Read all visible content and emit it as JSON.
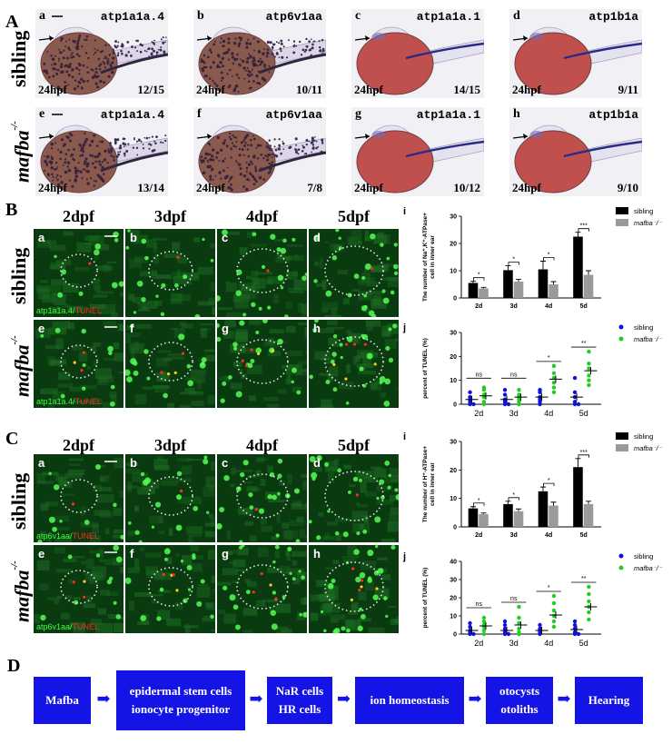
{
  "panels": {
    "A": "A",
    "B": "B",
    "C": "C",
    "D": "D"
  },
  "row_labels": {
    "sibling": "sibling",
    "mutant": "mafba"
  },
  "mutant_sup": "-/-",
  "section_a": {
    "embryos": [
      {
        "letter": "a",
        "gene": "atp1a1a.4",
        "stage": "24hpf",
        "ratio": "12/15",
        "stain": "dots"
      },
      {
        "letter": "b",
        "gene": "atp6v1aa",
        "stage": "24hpf",
        "ratio": "10/11",
        "stain": "dots"
      },
      {
        "letter": "c",
        "gene": "atp1a1a.1",
        "stage": "24hpf",
        "ratio": "14/15",
        "stain": "line"
      },
      {
        "letter": "d",
        "gene": "atp1b1a",
        "stage": "24hpf",
        "ratio": "9/11",
        "stain": "line"
      },
      {
        "letter": "e",
        "gene": "atp1a1a.4",
        "stage": "24hpf",
        "ratio": "13/14",
        "stain": "dots"
      },
      {
        "letter": "f",
        "gene": "atp6v1aa",
        "stage": "24hpf",
        "ratio": "7/8",
        "stain": "dots"
      },
      {
        "letter": "g",
        "gene": "atp1a1a.1",
        "stage": "24hpf",
        "ratio": "10/12",
        "stain": "line"
      },
      {
        "letter": "h",
        "gene": "atp1b1a",
        "stage": "24hpf",
        "ratio": "9/10",
        "stain": "line"
      }
    ]
  },
  "section_b": {
    "columns": [
      "2dpf",
      "3dpf",
      "4dpf",
      "5dpf"
    ],
    "letters": [
      "a",
      "b",
      "c",
      "d",
      "e",
      "f",
      "g",
      "h"
    ],
    "stain_green": "atp1a1a.4",
    "stain_sep": "/",
    "stain_red": "TUNEL"
  },
  "section_c": {
    "columns": [
      "2dpf",
      "3dpf",
      "4dpf",
      "5dpf"
    ],
    "letters": [
      "a",
      "b",
      "c",
      "d",
      "e",
      "f",
      "g",
      "h"
    ],
    "stain_green": "atp6v1aa",
    "stain_sep": "/",
    "stain_red": "TUNEL"
  },
  "chart_data": [
    {
      "id": "B-i",
      "letter": "i",
      "type": "bar",
      "ylabel": "The number of Na⁺,K⁺-ATPase+ cell in inner ear",
      "categories": [
        "2d",
        "3d",
        "4d",
        "5d"
      ],
      "ylim": [
        0,
        30
      ],
      "yticks": [
        0,
        10,
        20,
        30
      ],
      "series": [
        {
          "name": "sibling",
          "color": "#000000",
          "values": [
            5.5,
            10.2,
            10.5,
            22.5
          ],
          "errors": [
            0.6,
            1.6,
            3.0,
            1.6
          ]
        },
        {
          "name": "mafba⁻/⁻",
          "color": "#9a9a9a",
          "values": [
            3.5,
            6.0,
            5.0,
            8.5
          ],
          "errors": [
            0.4,
            0.8,
            1.0,
            1.5
          ]
        }
      ],
      "significance": [
        "*",
        "*",
        "*",
        "***"
      ]
    },
    {
      "id": "B-j",
      "letter": "j",
      "type": "scatter",
      "ylabel": "percent of TUNEL (%)",
      "categories": [
        "2d",
        "3d",
        "4d",
        "5d"
      ],
      "ylim": [
        0,
        30
      ],
      "yticks": [
        0,
        10,
        20,
        30
      ],
      "series": [
        {
          "name": "sibling",
          "color": "#1010e0",
          "points": [
            [
              0,
              0
            ],
            [
              0,
              0
            ],
            [
              0,
              1
            ],
            [
              0,
              2
            ],
            [
              0,
              3
            ],
            [
              0,
              5
            ],
            [
              1,
              0
            ],
            [
              1,
              0
            ],
            [
              1,
              1
            ],
            [
              1,
              2
            ],
            [
              1,
              4
            ],
            [
              1,
              6
            ],
            [
              2,
              0
            ],
            [
              2,
              1
            ],
            [
              2,
              2
            ],
            [
              2,
              3
            ],
            [
              2,
              5
            ],
            [
              2,
              6
            ],
            [
              3,
              0
            ],
            [
              3,
              0
            ],
            [
              3,
              1
            ],
            [
              3,
              3
            ],
            [
              3,
              5
            ],
            [
              3,
              11
            ]
          ],
          "means": [
            2,
            2,
            3,
            3
          ]
        },
        {
          "name": "mafba⁻/⁻",
          "color": "#22cc22",
          "points": [
            [
              0,
              0
            ],
            [
              0,
              1
            ],
            [
              0,
              3
            ],
            [
              0,
              4
            ],
            [
              0,
              6
            ],
            [
              0,
              7
            ],
            [
              1,
              0
            ],
            [
              1,
              1
            ],
            [
              1,
              2
            ],
            [
              1,
              3
            ],
            [
              1,
              4
            ],
            [
              1,
              6
            ],
            [
              2,
              5
            ],
            [
              2,
              7
            ],
            [
              2,
              9
            ],
            [
              2,
              11
            ],
            [
              2,
              13
            ],
            [
              2,
              16
            ],
            [
              3,
              8
            ],
            [
              3,
              10
            ],
            [
              3,
              12
            ],
            [
              3,
              15
            ],
            [
              3,
              17
            ],
            [
              3,
              22
            ]
          ],
          "means": [
            3.5,
            3,
            10.5,
            14
          ]
        }
      ],
      "significance": [
        "ns",
        "ns",
        "*",
        "**"
      ]
    },
    {
      "id": "C-i",
      "letter": "i",
      "type": "bar",
      "ylabel": "The number of H⁺-ATPase+ cell in inner ear",
      "categories": [
        "2d",
        "3d",
        "4d",
        "5d"
      ],
      "ylim": [
        0,
        30
      ],
      "yticks": [
        0,
        10,
        20,
        30
      ],
      "series": [
        {
          "name": "sibling",
          "color": "#000000",
          "values": [
            6.5,
            8.0,
            12.5,
            21.0
          ],
          "errors": [
            0.6,
            1.0,
            1.5,
            3.0
          ]
        },
        {
          "name": "mafba⁻/⁻",
          "color": "#9a9a9a",
          "values": [
            4.5,
            5.5,
            7.5,
            8.0
          ],
          "errors": [
            0.4,
            0.8,
            1.2,
            1.0
          ]
        }
      ],
      "significance": [
        "*",
        "*",
        "*",
        "***"
      ]
    },
    {
      "id": "C-j",
      "letter": "j",
      "type": "scatter",
      "ylabel": "percent of TUNEL (%)",
      "categories": [
        "2d",
        "3d",
        "4d",
        "5d"
      ],
      "ylim": [
        0,
        40
      ],
      "yticks": [
        0,
        10,
        20,
        30,
        40
      ],
      "series": [
        {
          "name": "sibling",
          "color": "#1010e0",
          "points": [
            [
              0,
              0
            ],
            [
              0,
              0
            ],
            [
              0,
              1
            ],
            [
              0,
              2
            ],
            [
              0,
              4
            ],
            [
              0,
              6
            ],
            [
              1,
              0
            ],
            [
              1,
              0
            ],
            [
              1,
              1
            ],
            [
              1,
              3
            ],
            [
              1,
              5
            ],
            [
              1,
              7
            ],
            [
              2,
              0
            ],
            [
              2,
              1
            ],
            [
              2,
              2
            ],
            [
              2,
              3
            ],
            [
              2,
              5
            ],
            [
              3,
              0
            ],
            [
              3,
              0
            ],
            [
              3,
              1
            ],
            [
              3,
              3
            ],
            [
              3,
              5
            ],
            [
              3,
              7
            ]
          ],
          "means": [
            2,
            2,
            2,
            2.5
          ]
        },
        {
          "name": "mafba⁻/⁻",
          "color": "#22cc22",
          "points": [
            [
              0,
              0
            ],
            [
              0,
              2
            ],
            [
              0,
              4
            ],
            [
              0,
              5
            ],
            [
              0,
              7
            ],
            [
              0,
              9
            ],
            [
              1,
              0
            ],
            [
              1,
              1
            ],
            [
              1,
              3
            ],
            [
              1,
              6
            ],
            [
              1,
              9
            ],
            [
              1,
              15
            ],
            [
              2,
              4
            ],
            [
              2,
              7
            ],
            [
              2,
              10
            ],
            [
              2,
              13
            ],
            [
              2,
              17
            ],
            [
              2,
              21
            ],
            [
              3,
              8
            ],
            [
              3,
              12
            ],
            [
              3,
              15
            ],
            [
              3,
              18
            ],
            [
              3,
              22
            ],
            [
              3,
              26
            ]
          ],
          "means": [
            4.5,
            5,
            10.5,
            15
          ]
        }
      ],
      "significance": [
        "ns",
        "ns",
        "*",
        "**"
      ]
    }
  ],
  "flow": {
    "boxes": [
      [
        "Mafba"
      ],
      [
        "epidermal stem cells",
        "ionocyte progenitor"
      ],
      [
        "NaR cells",
        "HR cells"
      ],
      [
        "ion homeostasis"
      ],
      [
        "otocysts",
        "otoliths"
      ],
      [
        "Hearing"
      ]
    ],
    "arrow": "➡",
    "color": "#1414e6"
  }
}
